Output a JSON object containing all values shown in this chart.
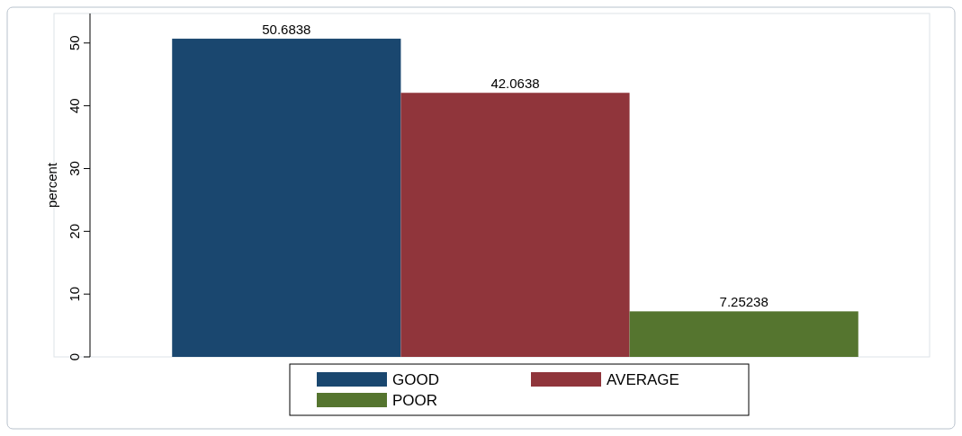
{
  "chart_data": {
    "type": "bar",
    "ylabel": "percent",
    "categories": [
      null
    ],
    "series": [
      {
        "name": "GOOD",
        "color": "#1a476f",
        "values": [
          50.6838
        ]
      },
      {
        "name": "AVERAGE",
        "color": "#90353b",
        "values": [
          42.0638
        ]
      },
      {
        "name": "POOR",
        "color": "#55752f",
        "values": [
          7.25238
        ]
      }
    ],
    "ylim": [
      0,
      54.7
    ],
    "yticks": [
      0,
      10,
      20,
      30,
      40,
      50
    ],
    "data_labels": true,
    "legend": "bottom"
  }
}
